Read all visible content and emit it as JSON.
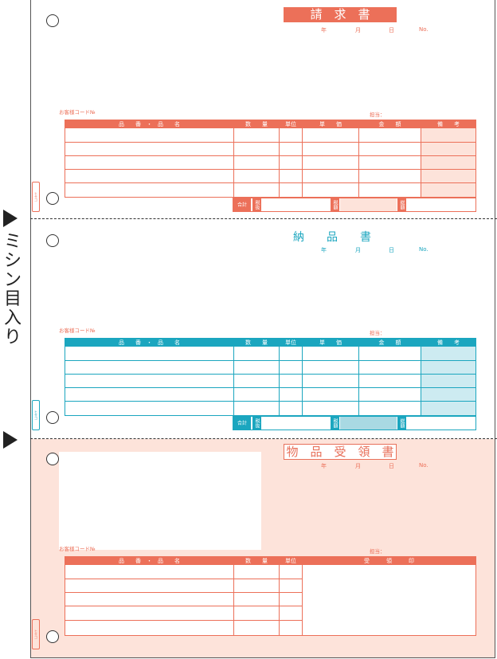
{
  "side": {
    "label_chars": [
      "ミ",
      "シ",
      "ン",
      "目",
      "入",
      "り"
    ]
  },
  "colors": {
    "invoice": "#ec7059",
    "delivery": "#1ba6bf",
    "receipt_bg": "#fde3da",
    "invoice_tint": "#fde3da",
    "delivery_tint": "#cdebf1"
  },
  "invoice": {
    "title": "請　求　書",
    "year": "年",
    "month": "月",
    "day": "日",
    "no": "No.",
    "customer_code": "お客様コード№",
    "person": "担当：",
    "headers": [
      "品　　番　・　品　　名",
      "数　　量",
      "単位",
      "単　　価",
      "金　　額",
      "備　　考"
    ],
    "totals": {
      "total": "合計",
      "tax_excluded": "税抜",
      "tax": "税額",
      "tax_included": "総額"
    }
  },
  "delivery": {
    "title": "納　　品　　書",
    "year": "年",
    "month": "月",
    "day": "日",
    "no": "No.",
    "customer_code": "お客様コード№",
    "person": "担当：",
    "headers": [
      "品　　番　・　品　　名",
      "数　　量",
      "単位",
      "単　　価",
      "金　　額",
      "備　　考"
    ],
    "totals": {
      "total": "合計",
      "tax_excluded": "税抜",
      "tax": "税額",
      "tax_included": "総額"
    }
  },
  "receipt": {
    "title": "物　品　受　領　書",
    "year": "年",
    "month": "月",
    "day": "日",
    "no": "No.",
    "customer_code": "お客様コード№",
    "person": "担当：",
    "headers": [
      "品　　番　・　品　　名",
      "数　　量",
      "単位",
      "受　　　領　　　印"
    ]
  },
  "stamp_text": "ヒサゴ"
}
